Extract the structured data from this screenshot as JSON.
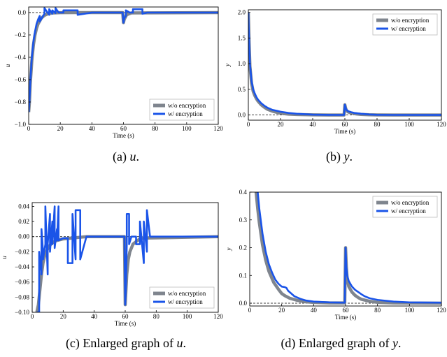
{
  "colors": {
    "without": "#7f858e",
    "with": "#1a54e8"
  },
  "chart_data": [
    {
      "id": "a",
      "type": "line",
      "caption_prefix": "(a)",
      "caption_var": "u",
      "caption_suffix": ".",
      "xlabel": "Time (s)",
      "ylabel": "u",
      "xlim": [
        0,
        120
      ],
      "ylim": [
        -1.0,
        0.05
      ],
      "xticks": [
        0,
        20,
        40,
        60,
        80,
        100,
        120
      ],
      "yticks": [
        -1.0,
        -0.8,
        -0.6,
        -0.4,
        -0.2,
        0.0
      ],
      "ytick_labels": [
        "−1.0",
        "−0.8",
        "−0.6",
        "−0.4",
        "−0.2",
        "0.0"
      ],
      "reference_line": 0,
      "legend": {
        "position": "lower-right",
        "entries": [
          "w/o encryption",
          "w/ encryption"
        ]
      },
      "series": [
        {
          "name": "w/o encryption",
          "x": [
            0,
            0.5,
            1,
            2,
            3,
            4,
            5,
            6,
            8,
            10,
            12,
            15,
            20,
            30,
            59.5,
            60,
            60.5,
            62,
            65,
            120
          ],
          "y": [
            -0.89,
            -0.8,
            -0.64,
            -0.43,
            -0.29,
            -0.2,
            -0.14,
            -0.1,
            -0.05,
            -0.025,
            -0.012,
            -0.004,
            -0.001,
            0,
            0,
            -0.09,
            -0.06,
            -0.02,
            -0.003,
            0
          ]
        },
        {
          "name": "w/ encryption",
          "x": [
            0,
            0.5,
            1,
            2,
            3,
            4,
            5,
            6,
            7,
            7,
            10,
            10,
            13,
            13,
            15,
            15,
            17,
            17,
            19,
            22,
            22,
            31,
            31,
            40,
            59.5,
            60,
            60.5,
            61.5,
            61.5,
            64,
            66,
            66,
            72,
            72,
            75,
            120
          ],
          "y": [
            -0.89,
            -0.79,
            -0.62,
            -0.4,
            -0.26,
            -0.17,
            -0.1,
            -0.06,
            -0.03,
            -0.08,
            -0.01,
            0.04,
            -0.02,
            0.03,
            -0.01,
            0.02,
            -0.005,
            0.04,
            0,
            0,
            0.02,
            0.02,
            -0.02,
            0,
            0,
            -0.09,
            -0.05,
            -0.03,
            0.02,
            0,
            0,
            0.03,
            0.03,
            -0.01,
            0,
            0
          ]
        }
      ]
    },
    {
      "id": "b",
      "type": "line",
      "caption_prefix": "(b)",
      "caption_var": "y",
      "caption_suffix": ".",
      "xlabel": "Time (s)",
      "ylabel": "y",
      "xlim": [
        0,
        120
      ],
      "ylim": [
        -0.1,
        2.05
      ],
      "xticks": [
        0,
        20,
        40,
        60,
        80,
        100,
        120
      ],
      "yticks": [
        0.0,
        0.5,
        1.0,
        1.5,
        2.0
      ],
      "ytick_labels": [
        "0.0",
        "0.5",
        "1.0",
        "1.5",
        "2.0"
      ],
      "reference_line": 0,
      "legend": {
        "position": "upper-right",
        "entries": [
          "w/o encryption",
          "w/ encryption"
        ]
      },
      "series": [
        {
          "name": "w/o encryption",
          "x": [
            0,
            0.5,
            1,
            2,
            3,
            4,
            5,
            6,
            8,
            10,
            12,
            15,
            18,
            20,
            25,
            30,
            40,
            50,
            59.5,
            60,
            60.5,
            61,
            62,
            64,
            66,
            70,
            75,
            80,
            90,
            120
          ],
          "y": [
            2.0,
            1.4,
            0.95,
            0.62,
            0.46,
            0.38,
            0.32,
            0.27,
            0.2,
            0.15,
            0.11,
            0.075,
            0.05,
            0.035,
            0.018,
            0.01,
            0.003,
            0.001,
            0.001,
            0.2,
            0.13,
            0.09,
            0.06,
            0.04,
            0.025,
            0.012,
            0.005,
            0.002,
            0.001,
            0.0
          ]
        },
        {
          "name": "w/ encryption",
          "x": [
            0,
            0.5,
            1,
            2,
            3,
            4,
            5,
            6,
            8,
            10,
            12,
            15,
            18,
            20,
            25,
            30,
            40,
            50,
            59.5,
            60,
            60.5,
            61,
            62,
            64,
            66,
            70,
            75,
            80,
            90,
            120
          ],
          "y": [
            2.0,
            1.45,
            1.0,
            0.66,
            0.5,
            0.42,
            0.35,
            0.3,
            0.23,
            0.18,
            0.14,
            0.1,
            0.08,
            0.065,
            0.04,
            0.025,
            0.008,
            0.003,
            0.002,
            0.2,
            0.14,
            0.1,
            0.075,
            0.055,
            0.04,
            0.025,
            0.012,
            0.005,
            0.002,
            0.001
          ]
        }
      ]
    },
    {
      "id": "c",
      "type": "line",
      "caption_prefix": "(c)  Enlarged graph of",
      "caption_var": "u",
      "caption_suffix": ".",
      "xlabel": "Time (s)",
      "ylabel": "u",
      "xlim": [
        0,
        120
      ],
      "ylim": [
        -0.1,
        0.045
      ],
      "xticks": [
        0,
        20,
        40,
        60,
        80,
        100,
        120
      ],
      "yticks": [
        -0.1,
        -0.08,
        -0.06,
        -0.04,
        -0.02,
        0.0,
        0.02,
        0.04
      ],
      "ytick_labels": [
        "−0.10",
        "−0.08",
        "−0.06",
        "−0.04",
        "−0.02",
        "0.00",
        "0.02",
        "0.04"
      ],
      "reference_line": 0,
      "legend": {
        "position": "lower-right",
        "entries": [
          "w/o encryption",
          "w/ encryption"
        ]
      },
      "series": [
        {
          "name": "w/o encryption",
          "x": [
            3,
            4,
            5,
            6,
            7,
            8,
            10,
            12,
            14,
            16,
            18,
            20,
            25,
            30,
            35,
            59.5,
            60,
            60.5,
            61,
            62,
            63,
            65,
            68,
            70,
            120
          ],
          "y": [
            -0.1,
            -0.09,
            -0.07,
            -0.05,
            -0.035,
            -0.026,
            -0.016,
            -0.01,
            -0.007,
            -0.005,
            -0.004,
            -0.003,
            -0.002,
            -0.001,
            0,
            0,
            -0.09,
            -0.07,
            -0.05,
            -0.03,
            -0.02,
            -0.01,
            -0.005,
            -0.002,
            0
          ]
        },
        {
          "name": "w/ encryption",
          "x": [
            3,
            4.5,
            4.5,
            6,
            6,
            7,
            7,
            8.5,
            8.5,
            10,
            10,
            11.5,
            11.5,
            13,
            13,
            14.5,
            14.5,
            16,
            16,
            17,
            17,
            20,
            23,
            23,
            26,
            26,
            28,
            28,
            31,
            31,
            35,
            40,
            59.5,
            60,
            60.5,
            61,
            61,
            62.5,
            62.5,
            64,
            67,
            67,
            69.5,
            69.5,
            72,
            72,
            74,
            74,
            76,
            120
          ],
          "y": [
            -0.1,
            -0.1,
            -0.02,
            -0.05,
            0.01,
            -0.02,
            -0.03,
            -0.01,
            0.04,
            -0.05,
            -0.01,
            0.03,
            -0.02,
            0.02,
            -0.01,
            0.04,
            -0.015,
            0.01,
            -0.005,
            0.04,
            -0.005,
            -0.002,
            -0.002,
            -0.035,
            -0.035,
            0.03,
            -0.03,
            0.035,
            0.035,
            -0.03,
            0,
            0,
            0,
            -0.09,
            -0.06,
            -0.01,
            0.03,
            0.03,
            -0.01,
            0,
            0,
            -0.01,
            -0.01,
            0.02,
            -0.035,
            0.02,
            -0.02,
            0.035,
            0,
            0
          ]
        }
      ]
    },
    {
      "id": "d",
      "type": "line",
      "caption_prefix": "(d)  Enlarged graph of",
      "caption_var": "y",
      "caption_suffix": ".",
      "xlabel": "Time (s)",
      "ylabel": "y",
      "xlim": [
        0,
        120
      ],
      "ylim": [
        -0.01,
        0.4
      ],
      "xticks": [
        0,
        20,
        40,
        60,
        80,
        100,
        120
      ],
      "yticks": [
        0.0,
        0.1,
        0.2,
        0.3,
        0.4
      ],
      "ytick_labels": [
        "0.0",
        "0.1",
        "0.2",
        "0.3",
        "0.4"
      ],
      "reference_line": 0,
      "legend": {
        "position": "upper-right",
        "entries": [
          "w/o encryption",
          "w/ encryption"
        ]
      },
      "series": [
        {
          "name": "w/o encryption",
          "x": [
            4,
            5,
            6,
            8,
            10,
            12,
            15,
            18,
            20,
            22,
            25,
            30,
            35,
            40,
            50,
            59.5,
            60,
            60.5,
            61,
            62,
            64,
            66,
            68,
            70,
            75,
            80,
            90,
            120
          ],
          "y": [
            0.4,
            0.34,
            0.29,
            0.21,
            0.155,
            0.115,
            0.075,
            0.05,
            0.035,
            0.027,
            0.018,
            0.01,
            0.005,
            0.003,
            0.001,
            0.001,
            0.2,
            0.13,
            0.09,
            0.06,
            0.04,
            0.028,
            0.02,
            0.014,
            0.007,
            0.003,
            0.001,
            0.0
          ]
        },
        {
          "name": "w/ encryption",
          "x": [
            5,
            6,
            8,
            10,
            12,
            14,
            16,
            18,
            20,
            22,
            23,
            24,
            26,
            28,
            30,
            32,
            35,
            40,
            50,
            59.5,
            60,
            60.5,
            61,
            62,
            64,
            66,
            68,
            70,
            72,
            75,
            80,
            90,
            100,
            120
          ],
          "y": [
            0.4,
            0.34,
            0.25,
            0.185,
            0.14,
            0.11,
            0.085,
            0.07,
            0.06,
            0.058,
            0.055,
            0.045,
            0.035,
            0.025,
            0.02,
            0.015,
            0.01,
            0.006,
            0.003,
            0.002,
            0.2,
            0.13,
            0.1,
            0.08,
            0.06,
            0.048,
            0.04,
            0.032,
            0.025,
            0.018,
            0.012,
            0.006,
            0.003,
            0.002
          ]
        }
      ]
    }
  ]
}
